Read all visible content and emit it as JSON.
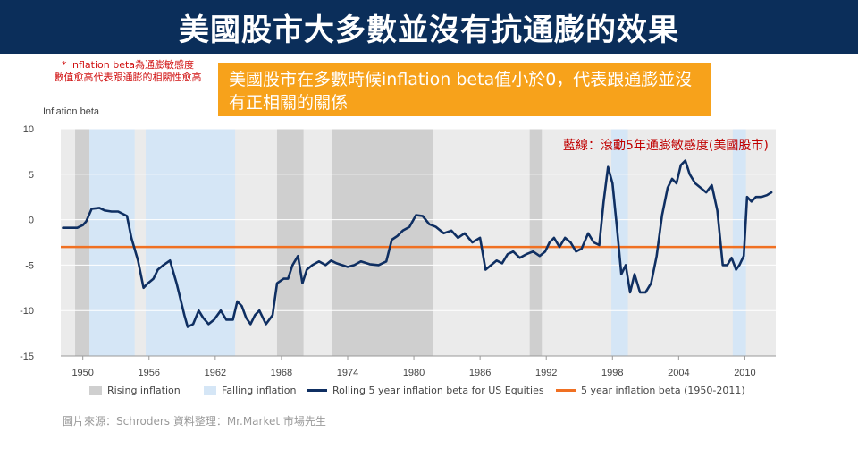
{
  "header": {
    "title": "美國股市大多數並沒有抗通膨的效果"
  },
  "footnote": {
    "line1": "* inflation beta為通膨敏感度",
    "line2": "數值愈高代表跟通膨的相關性愈高"
  },
  "callout": {
    "text": "美國股市在多數時候inflation beta值小於0，代表跟通膨並沒有正相關的關係"
  },
  "series_note": "藍線：滾動5年通膨敏感度(美國股市)",
  "source": "圖片來源：Schroders     資料整理：Mr.Market  市場先生",
  "colors": {
    "title_bg": "#0b2e5a",
    "callout_bg": "#f7a21b",
    "rising": "#cfcfcf",
    "falling": "#d5e6f6",
    "line": "#0f2f62",
    "reference": "#f07022",
    "plot_bg": "#ebebeb"
  },
  "chart_data": {
    "type": "line",
    "ylabel": "Inflation beta",
    "ylim": [
      -15,
      10
    ],
    "xlim": [
      1948.0,
      2012.8
    ],
    "yticks": [
      "10",
      "5",
      "0",
      "-5",
      "-10",
      "-15"
    ],
    "ytick_values": [
      10,
      5,
      0,
      -5,
      -10,
      -15
    ],
    "xticks": [
      "1950",
      "1956",
      "1962",
      "1968",
      "1974",
      "1980",
      "1986",
      "1992",
      "1998",
      "2004",
      "2010"
    ],
    "xtick_values": [
      1950,
      1956,
      1962,
      1968,
      1974,
      1980,
      1986,
      1992,
      1998,
      2004,
      2010
    ],
    "rising_periods": [
      [
        1949.3,
        1950.6
      ],
      [
        1967.6,
        1970.0
      ],
      [
        1972.6,
        1981.7
      ],
      [
        1990.5,
        1991.6
      ]
    ],
    "falling_periods": [
      [
        1950.6,
        1954.7
      ],
      [
        1955.7,
        1963.8
      ],
      [
        1997.9,
        1999.4
      ],
      [
        2008.9,
        2010.1
      ]
    ],
    "reference_line": {
      "name": "5 year inflation beta (1950-2011)",
      "value": -3
    },
    "series": [
      {
        "name": "Rolling 5 year inflation beta for US Equities",
        "x": [
          1948.2,
          1949.5,
          1950.0,
          1950.3,
          1950.8,
          1951.5,
          1952.0,
          1952.6,
          1953.2,
          1954.0,
          1954.4,
          1955.0,
          1955.5,
          1955.9,
          1956.4,
          1956.8,
          1957.3,
          1957.9,
          1958.5,
          1959.2,
          1959.5,
          1960.0,
          1960.5,
          1960.9,
          1961.4,
          1961.9,
          1962.5,
          1963.0,
          1963.6,
          1964.0,
          1964.4,
          1964.8,
          1965.2,
          1965.6,
          1966.0,
          1966.6,
          1967.2,
          1967.6,
          1968.2,
          1968.6,
          1969.0,
          1969.5,
          1969.9,
          1970.3,
          1970.8,
          1971.4,
          1972.0,
          1972.5,
          1973.0,
          1973.5,
          1974.0,
          1974.6,
          1975.2,
          1976.0,
          1976.8,
          1977.5,
          1978.0,
          1978.5,
          1979.0,
          1979.6,
          1980.2,
          1980.8,
          1981.4,
          1982.0,
          1982.7,
          1983.4,
          1984.0,
          1984.6,
          1985.3,
          1986.0,
          1986.5,
          1987.0,
          1987.5,
          1988.0,
          1988.5,
          1989.0,
          1989.6,
          1990.2,
          1990.8,
          1991.4,
          1991.9,
          1992.3,
          1992.7,
          1993.2,
          1993.7,
          1994.2,
          1994.7,
          1995.2,
          1995.8,
          1996.3,
          1996.8,
          1997.2,
          1997.6,
          1998.0,
          1998.4,
          1998.8,
          1999.2,
          1999.6,
          2000.0,
          2000.5,
          2001.0,
          2001.5,
          2002.0,
          2002.5,
          2003.0,
          2003.4,
          2003.8,
          2004.2,
          2004.6,
          2005.0,
          2005.5,
          2006.0,
          2006.5,
          2007.0,
          2007.5,
          2008.0,
          2008.4,
          2008.8,
          2009.2,
          2009.5,
          2009.9,
          2010.2,
          2010.6,
          2011.0,
          2011.5,
          2012.0,
          2012.4
        ],
        "values": [
          -0.9,
          -0.9,
          -0.6,
          -0.2,
          1.2,
          1.3,
          1.0,
          0.9,
          0.9,
          0.4,
          -2.0,
          -4.5,
          -7.5,
          -7.0,
          -6.5,
          -5.5,
          -5.0,
          -4.5,
          -7.0,
          -10.5,
          -11.8,
          -11.5,
          -10.0,
          -10.8,
          -11.5,
          -11.0,
          -10.0,
          -11.0,
          -11.0,
          -9.0,
          -9.5,
          -10.8,
          -11.5,
          -10.5,
          -10.0,
          -11.5,
          -10.5,
          -7.0,
          -6.5,
          -6.5,
          -5.0,
          -4.0,
          -7.0,
          -5.5,
          -5.0,
          -4.6,
          -5.0,
          -4.5,
          -4.8,
          -5.0,
          -5.2,
          -5.0,
          -4.6,
          -4.9,
          -5.0,
          -4.6,
          -2.2,
          -1.8,
          -1.2,
          -0.8,
          0.5,
          0.4,
          -0.5,
          -0.8,
          -1.5,
          -1.2,
          -2.0,
          -1.5,
          -2.5,
          -2.0,
          -5.5,
          -5.0,
          -4.5,
          -4.8,
          -3.8,
          -3.5,
          -4.2,
          -3.8,
          -3.5,
          -4.0,
          -3.5,
          -2.5,
          -2.0,
          -3.0,
          -2.0,
          -2.5,
          -3.5,
          -3.2,
          -1.5,
          -2.5,
          -2.8,
          2.0,
          5.8,
          4.0,
          -0.8,
          -6.0,
          -5.0,
          -8.0,
          -6.0,
          -8.0,
          -8.0,
          -7.0,
          -4.0,
          0.5,
          3.5,
          4.5,
          4.0,
          6.0,
          6.5,
          5.0,
          4.0,
          3.5,
          3.0,
          3.8,
          1.0,
          -5.0,
          -5.0,
          -4.2,
          -5.5,
          -5.0,
          -4.0,
          2.5,
          2.0,
          2.5,
          2.5,
          2.7,
          3.0
        ]
      }
    ]
  },
  "legend": {
    "rising": "Rising inflation",
    "falling": "Falling inflation",
    "rolling": "Rolling 5 year inflation beta for US Equities",
    "reference": "5 year inflation beta (1950-2011)"
  }
}
